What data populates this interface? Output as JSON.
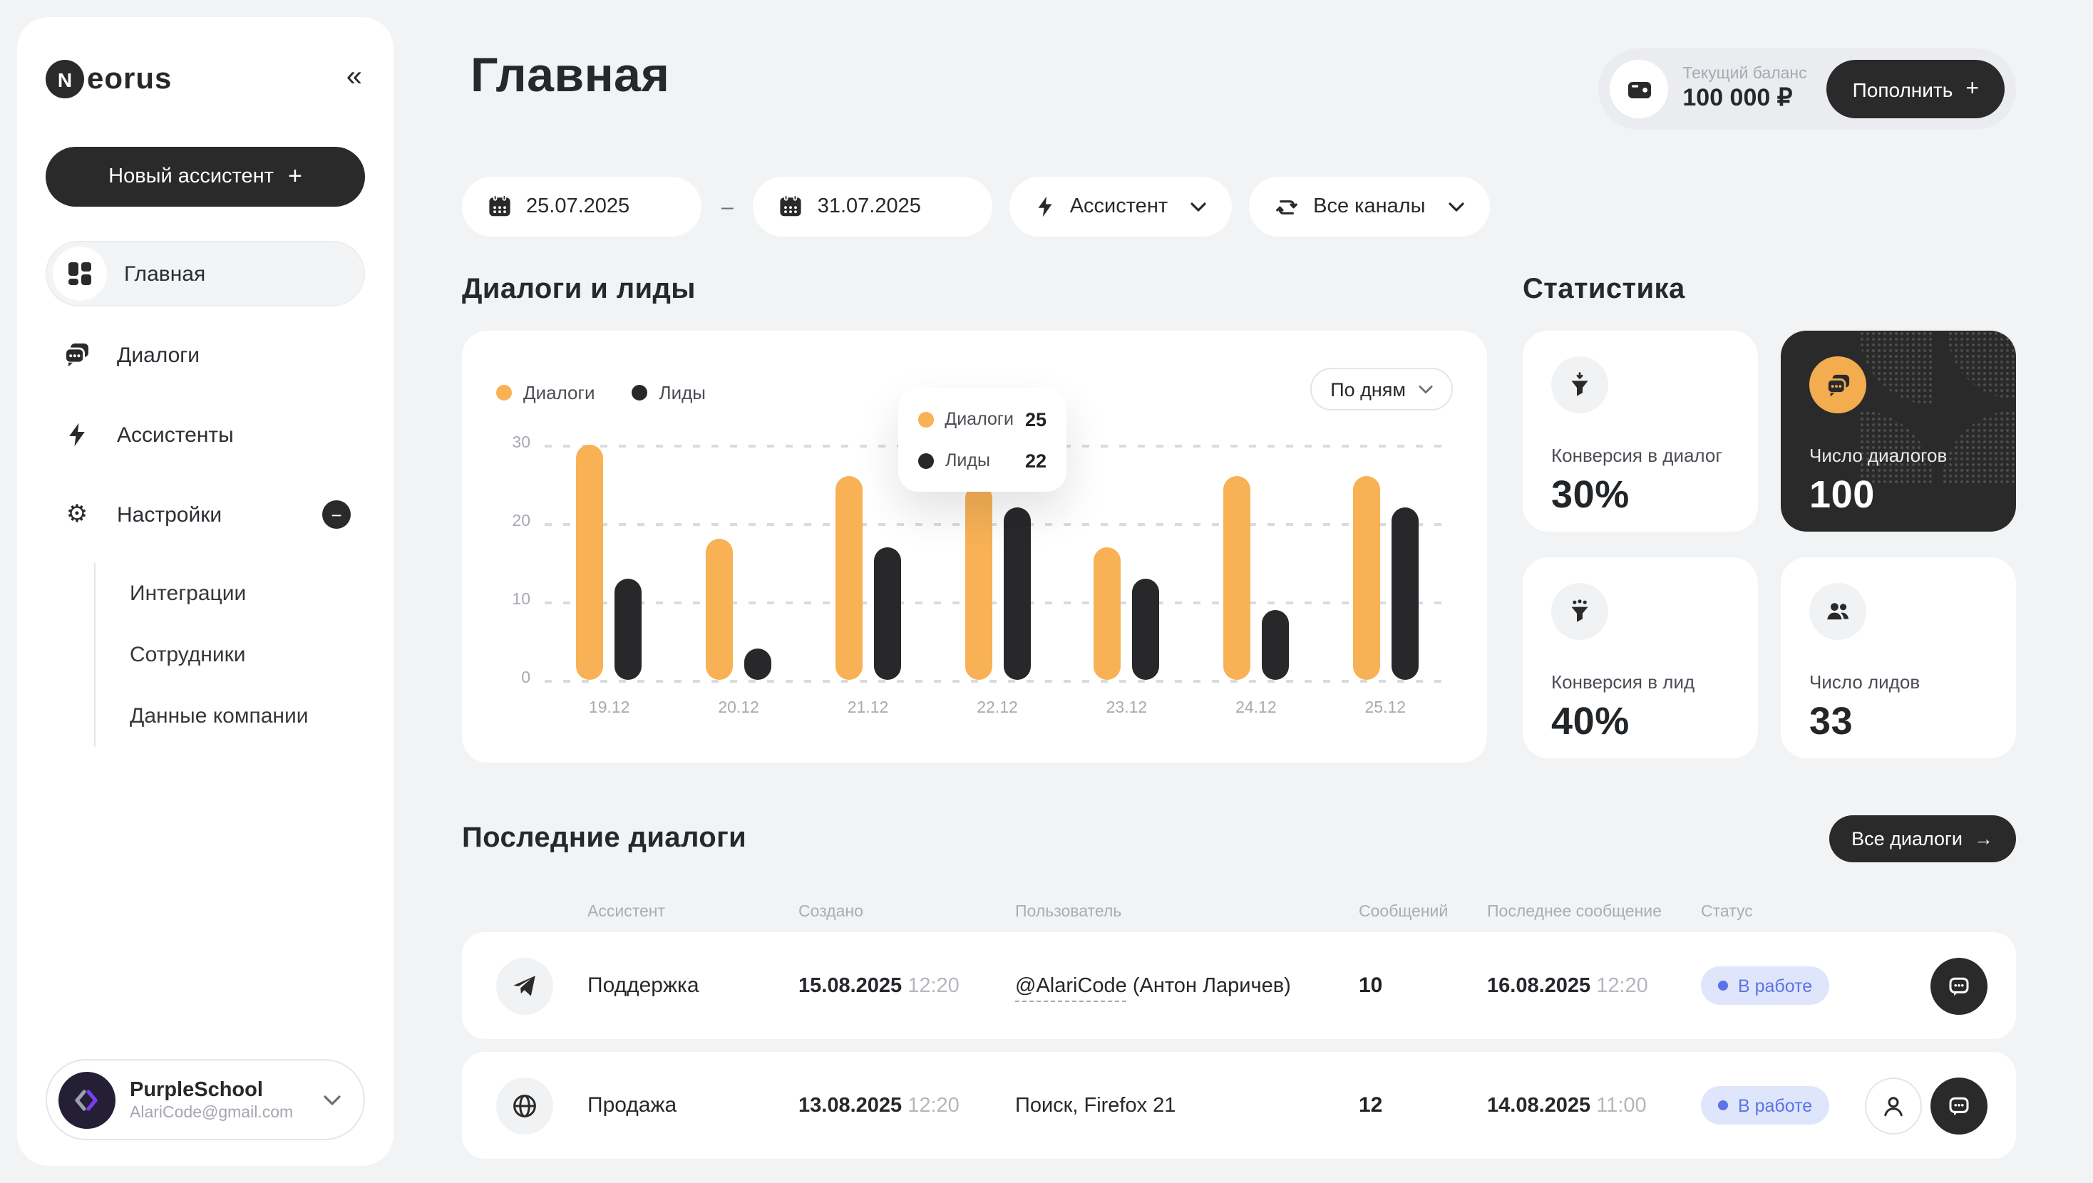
{
  "icons": {
    "collapse": "«",
    "plus": "+",
    "minus": "−",
    "arrow_right": "→",
    "dash": "–"
  },
  "sidebar": {
    "logo_letter": "N",
    "logo_text": "eorus",
    "new_assistant_label": "Новый ассистент",
    "items": [
      {
        "label": "Главная"
      },
      {
        "label": "Диалоги"
      },
      {
        "label": "Ассистенты"
      },
      {
        "label": "Настройки"
      }
    ],
    "subitems": [
      {
        "label": "Интеграции"
      },
      {
        "label": "Сотрудники"
      },
      {
        "label": "Данные компании"
      }
    ],
    "user": {
      "name": "PurpleSchool",
      "email": "AlariCode@gmail.com"
    }
  },
  "header": {
    "title": "Главная",
    "balance_label": "Текущий баланс",
    "balance_value": "100 000 ₽",
    "topup_label": "Пополнить"
  },
  "filters": {
    "date_from": "25.07.2025",
    "date_to": "31.07.2025",
    "assistant": "Ассистент",
    "channels": "Все каналы"
  },
  "chart_section": {
    "title": "Диалоги и лиды"
  },
  "chart_data": {
    "type": "bar",
    "title": "Диалоги и лиды",
    "categories": [
      "19.12",
      "20.12",
      "21.12",
      "22.12",
      "23.12",
      "24.12",
      "25.12"
    ],
    "series": [
      {
        "name": "Диалоги",
        "color": "#F8B155",
        "values": [
          30,
          18,
          26,
          25,
          17,
          26,
          26
        ]
      },
      {
        "name": "Лиды",
        "color": "#28282B",
        "values": [
          13,
          4,
          17,
          22,
          13,
          9,
          22
        ]
      }
    ],
    "ylim": [
      0,
      30
    ],
    "yticks": [
      30,
      20,
      10,
      0
    ],
    "grid": "dashed-horizontal",
    "legend_position": "top-left",
    "granularity_label": "По дням",
    "tooltip": {
      "rows": [
        {
          "label": "Диалоги",
          "value": "25"
        },
        {
          "label": "Лиды",
          "value": "22"
        }
      ]
    }
  },
  "stats": {
    "title": "Статистика",
    "cards": [
      {
        "label": "Конверсия в диалог",
        "value": "30%"
      },
      {
        "label": "Число диалогов",
        "value": "100"
      },
      {
        "label": "Конверсия в лид",
        "value": "40%"
      },
      {
        "label": "Число лидов",
        "value": "33"
      }
    ]
  },
  "dialogs": {
    "title": "Последние диалоги",
    "all_label": "Все диалоги",
    "columns": [
      "Ассистент",
      "Создано",
      "Пользователь",
      "Сообщений",
      "Последнее сообщение",
      "Статус"
    ],
    "rows": [
      {
        "assistant": "Поддержка",
        "created_date": "15.08.2025",
        "created_time": "12:20",
        "user_handle": "@AlariCode",
        "user_rest": " (Антон Ларичев)",
        "messages": "10",
        "last_date": "16.08.2025",
        "last_time": "12:20",
        "status": "В работе"
      },
      {
        "assistant": "Продажа",
        "created_date": "13.08.2025",
        "created_time": "12:20",
        "user_handle": "",
        "user_rest": "Поиск, Firefox 21",
        "messages": "12",
        "last_date": "14.08.2025",
        "last_time": "11:00",
        "status": "В работе"
      }
    ]
  }
}
